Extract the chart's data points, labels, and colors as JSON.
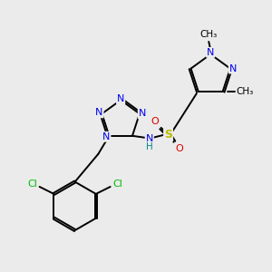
{
  "background_color": "#ebebeb",
  "atom_colors": {
    "C": "#000000",
    "N": "#0000ee",
    "O": "#dd0000",
    "S": "#bbbb00",
    "Cl": "#00bb00",
    "H": "#008888"
  },
  "figsize": [
    3.0,
    3.0
  ],
  "dpi": 100
}
